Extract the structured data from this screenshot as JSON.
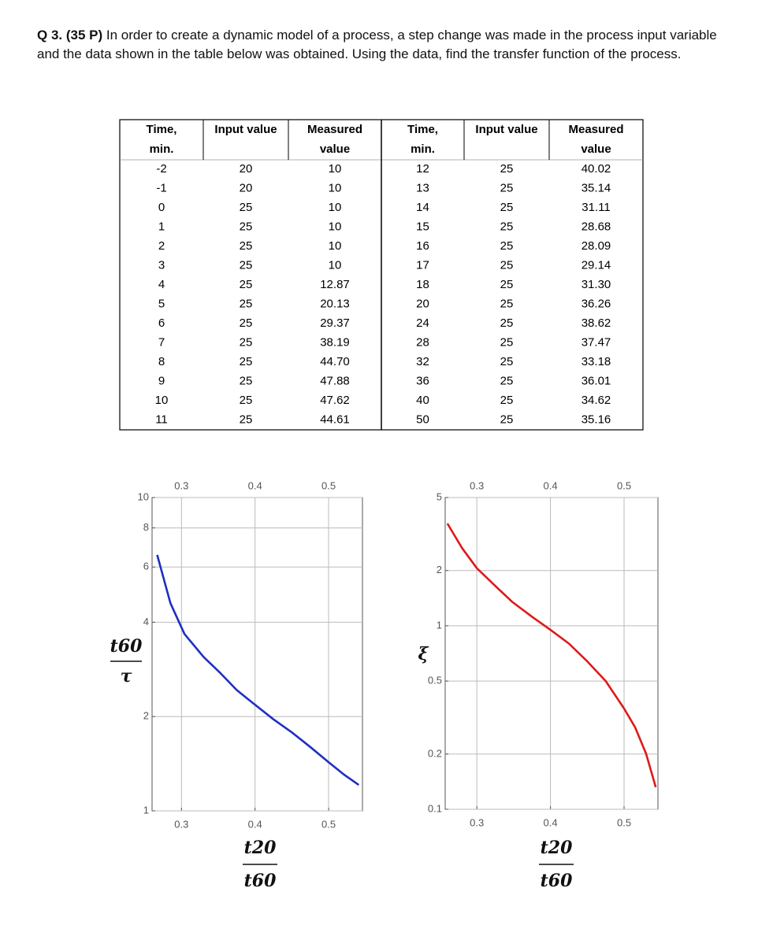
{
  "question": {
    "label": "Q 3. (35 P)",
    "text": "In order to create a dynamic model of a process, a step change was made in the process input variable and the data shown in the table below was obtained. Using the data, find the transfer function of the process."
  },
  "table": {
    "header": [
      [
        "Time,",
        "min."
      ],
      [
        "Input value"
      ],
      [
        "Measured",
        "value"
      ],
      [
        "Time,",
        "min."
      ],
      [
        "Input value"
      ],
      [
        "Measured",
        "value"
      ]
    ],
    "rows": [
      [
        "-2",
        "20",
        "10",
        "12",
        "25",
        "40.02"
      ],
      [
        "-1",
        "20",
        "10",
        "13",
        "25",
        "35.14"
      ],
      [
        "0",
        "25",
        "10",
        "14",
        "25",
        "31.11"
      ],
      [
        "1",
        "25",
        "10",
        "15",
        "25",
        "28.68"
      ],
      [
        "2",
        "25",
        "10",
        "16",
        "25",
        "28.09"
      ],
      [
        "3",
        "25",
        "10",
        "17",
        "25",
        "29.14"
      ],
      [
        "4",
        "25",
        "12.87",
        "18",
        "25",
        "31.30"
      ],
      [
        "5",
        "25",
        "20.13",
        "20",
        "25",
        "36.26"
      ],
      [
        "6",
        "25",
        "29.37",
        "24",
        "25",
        "38.62"
      ],
      [
        "7",
        "25",
        "38.19",
        "28",
        "25",
        "37.47"
      ],
      [
        "8",
        "25",
        "44.70",
        "32",
        "25",
        "33.18"
      ],
      [
        "9",
        "25",
        "47.88",
        "36",
        "25",
        "36.01"
      ],
      [
        "10",
        "25",
        "47.62",
        "40",
        "25",
        "34.62"
      ],
      [
        "11",
        "25",
        "44.61",
        "50",
        "25",
        "35.16"
      ]
    ]
  },
  "chart_data": [
    {
      "type": "line",
      "log_y": true,
      "grid": true,
      "x_label": {
        "numerator": "t20",
        "denominator": "t60"
      },
      "y_label": {
        "numerator": "t60",
        "denominator": "τ"
      },
      "xlim": [
        0.26,
        0.546
      ],
      "ylim": [
        1,
        10
      ],
      "xticks": [
        0.3,
        0.4,
        0.5
      ],
      "yticks": [
        1,
        2,
        4,
        6,
        8,
        10
      ],
      "x": [
        0.267,
        0.285,
        0.304,
        0.33,
        0.353,
        0.375,
        0.4,
        0.425,
        0.45,
        0.475,
        0.5,
        0.52,
        0.541
      ],
      "series": [
        {
          "color": "#1f2fc0",
          "values": [
            6.56,
            4.6,
            3.67,
            3.1,
            2.75,
            2.43,
            2.18,
            1.96,
            1.78,
            1.6,
            1.43,
            1.31,
            1.21
          ]
        }
      ]
    },
    {
      "type": "line",
      "log_y": true,
      "grid": true,
      "x_label": {
        "numerator": "t20",
        "denominator": "t60"
      },
      "y_label": "ξ",
      "xlim": [
        0.257,
        0.546
      ],
      "ylim": [
        0.1,
        5
      ],
      "xticks": [
        0.3,
        0.4,
        0.5
      ],
      "yticks": [
        0.1,
        0.2,
        0.5,
        1,
        2,
        5
      ],
      "x": [
        0.26,
        0.28,
        0.3,
        0.325,
        0.348,
        0.375,
        0.4,
        0.425,
        0.45,
        0.475,
        0.5,
        0.515,
        0.53,
        0.543
      ],
      "series": [
        {
          "color": "#dd1a1a",
          "values": [
            3.61,
            2.65,
            2.06,
            1.65,
            1.35,
            1.12,
            0.95,
            0.8,
            0.64,
            0.5,
            0.354,
            0.28,
            0.2,
            0.132
          ]
        }
      ]
    }
  ]
}
